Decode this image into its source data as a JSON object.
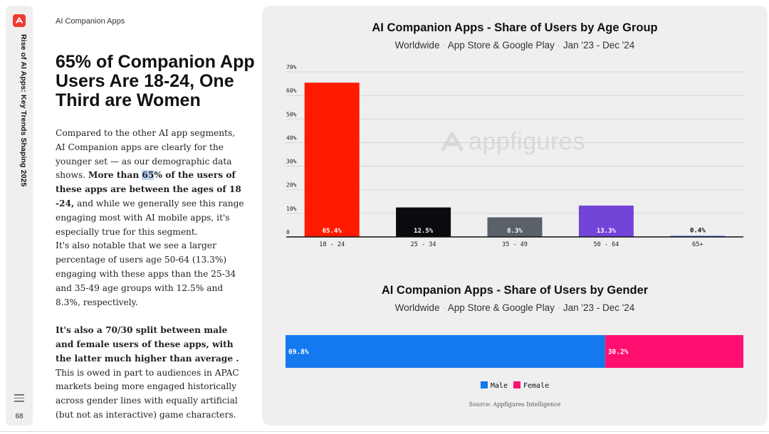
{
  "rail": {
    "vertical_title": "Rise of AI Apps: Key Trends Shaping 2025",
    "page_number": "68",
    "logo_icon": "appfigures-logo-icon",
    "menu_icon": "hamburger-menu-icon"
  },
  "section_label": "AI Companion Apps",
  "headline": "65% of Companion App Users Are 18-24, One Third are Women",
  "body": {
    "p1_a": "Compared to the other AI app segments, AI Companion apps are clearly for the younger set — as our demographic data shows. ",
    "p1_bold_a": "More than ",
    "p1_bold_hl": "65",
    "p1_bold_b": "% of the users of these apps are between the ages of 18 -24,",
    "p1_b": " and while we generally see this range engaging most with AI mobile apps, it's especially true for this segment.",
    "p2": "It's also notable that we see a larger percentage of users age 50-64 (13.3%) engaging with these apps than the 25-34 and 35-49 age groups with 12.5% and 8.3%, respectively.",
    "p3_bold": "It's also a 70/30 split between male and female users of these apps, with the latter much higher than average .",
    "p3": " This is owed in part to audiences in APAC markets being more engaged historically across gender lines with equally artificial (but not as interactive) game characters."
  },
  "watermark": "appfigures",
  "chart1": {
    "title": "AI Companion Apps - Share of Users by Age Group",
    "subtitle_parts": [
      "Worldwide",
      "App Store & Google Play",
      "Jan '23 - Dec '24"
    ]
  },
  "chart2": {
    "title": "AI Companion Apps - Share of Users by Gender",
    "subtitle_parts": [
      "Worldwide",
      "App Store & Google Play",
      "Jan '23 - Dec '24"
    ]
  },
  "source": "Source: Appfigures Intelligence",
  "chart_data": [
    {
      "type": "bar",
      "title": "AI Companion Apps - Share of Users by Age Group",
      "subtitle": "Worldwide · App Store & Google Play · Jan '23 - Dec '24",
      "categories": [
        "18 - 24",
        "25 - 34",
        "35 - 49",
        "50 - 64",
        "65+"
      ],
      "values": [
        65.4,
        12.5,
        8.3,
        13.3,
        0.4
      ],
      "labels": [
        "65.4%",
        "12.5%",
        "8.3%",
        "13.3%",
        "0.4%"
      ],
      "colors": [
        "#ff1a00",
        "#0b0b0f",
        "#5b6168",
        "#7444d9",
        "#2f6fe0"
      ],
      "label_colors": [
        "#ffffff",
        "#ffffff",
        "#ffffff",
        "#ffffff",
        "#111111"
      ],
      "yticks": [
        "0",
        "10%",
        "20%",
        "30%",
        "40%",
        "50%",
        "60%",
        "70%"
      ],
      "ylim": [
        0,
        70
      ],
      "grid": true,
      "xlabel": "",
      "ylabel": ""
    },
    {
      "type": "bar",
      "orientation": "horizontal-stacked",
      "title": "AI Companion Apps - Share of Users by Gender",
      "subtitle": "Worldwide · App Store & Google Play · Jan '23 - Dec '24",
      "series": [
        {
          "name": "Male",
          "values": [
            69.8
          ],
          "label": "69.8%",
          "color": "#1479ee"
        },
        {
          "name": "Female",
          "values": [
            30.2
          ],
          "label": "30.2%",
          "color": "#ff1070"
        }
      ],
      "legend_position": "bottom-center"
    }
  ]
}
